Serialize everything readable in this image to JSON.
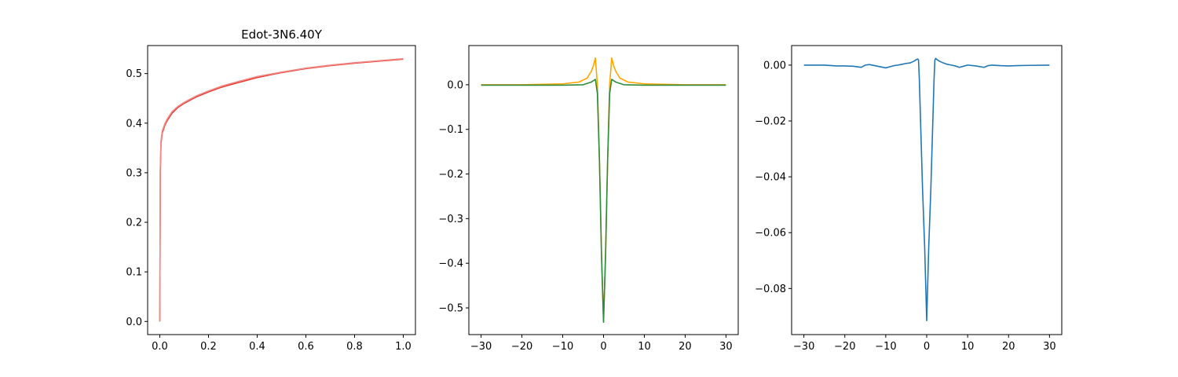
{
  "chart_data": [
    {
      "type": "line",
      "title": "Edot-3N6.40Y",
      "xlabel": "",
      "ylabel": "",
      "xlim": [
        -0.05,
        1.05
      ],
      "ylim": [
        -0.0265,
        0.5565
      ],
      "xticks": [
        0.0,
        0.2,
        0.4,
        0.6,
        0.8,
        1.0
      ],
      "xtick_labels": [
        "0.0",
        "0.2",
        "0.4",
        "0.6",
        "0.8",
        "1.0"
      ],
      "yticks": [
        0.0,
        0.1,
        0.2,
        0.3,
        0.4,
        0.5
      ],
      "ytick_labels": [
        "0.0",
        "0.1",
        "0.2",
        "0.3",
        "0.4",
        "0.5"
      ],
      "grid": false,
      "series": [
        {
          "color": "#e8372c",
          "x": [
            0.0,
            0.002,
            0.005,
            0.01,
            0.02,
            0.03,
            0.05,
            0.075,
            0.1,
            0.15,
            0.2,
            0.25,
            0.3,
            0.4,
            0.5,
            0.6,
            0.7,
            0.8,
            0.9,
            1.0
          ],
          "y": [
            0.0,
            0.3,
            0.36,
            0.38,
            0.395,
            0.405,
            0.42,
            0.432,
            0.44,
            0.453,
            0.463,
            0.472,
            0.479,
            0.492,
            0.502,
            0.51,
            0.516,
            0.521,
            0.525,
            0.529
          ]
        },
        {
          "color": "#f08a86",
          "x": [
            0.0,
            0.002,
            0.005,
            0.01,
            0.02,
            0.03,
            0.05,
            0.075,
            0.1,
            0.15,
            0.2,
            0.25,
            0.3,
            0.4,
            0.5,
            0.6,
            0.7,
            0.8,
            0.9,
            1.0
          ],
          "y": [
            0.0,
            0.31,
            0.365,
            0.384,
            0.398,
            0.408,
            0.423,
            0.434,
            0.442,
            0.455,
            0.465,
            0.474,
            0.481,
            0.494,
            0.503,
            0.511,
            0.517,
            0.522,
            0.526,
            0.53
          ]
        }
      ]
    },
    {
      "type": "line",
      "title": "",
      "xlabel": "",
      "ylabel": "",
      "xlim": [
        -33,
        33
      ],
      "ylim": [
        -0.5598,
        0.0878
      ],
      "xticks": [
        -30,
        -20,
        -10,
        0,
        10,
        20,
        30
      ],
      "xtick_labels": [
        "−30",
        "−20",
        "−10",
        "0",
        "10",
        "20",
        "30"
      ],
      "yticks": [
        0.0,
        -0.1,
        -0.2,
        -0.3,
        -0.4,
        -0.5
      ],
      "ytick_labels": [
        "0.0",
        "−0.1",
        "−0.2",
        "−0.3",
        "−0.4",
        "−0.5"
      ],
      "grid": false,
      "series": [
        {
          "color": "#ffa500",
          "x": [
            -30,
            -20,
            -10,
            -6,
            -4,
            -3,
            -2.5,
            -2,
            -1.5,
            -1,
            -0.5,
            0,
            0.5,
            1,
            1.5,
            2,
            2.5,
            3,
            4,
            6,
            10,
            20,
            30
          ],
          "y": [
            0.0,
            0.0,
            0.002,
            0.006,
            0.015,
            0.03,
            0.042,
            0.06,
            0.0,
            -0.17,
            -0.38,
            -0.53,
            -0.38,
            -0.17,
            0.0,
            0.06,
            0.042,
            0.03,
            0.015,
            0.006,
            0.002,
            0.0,
            0.0
          ]
        },
        {
          "color": "#2e8b3d",
          "x": [
            -30,
            -20,
            -10,
            -5,
            -3,
            -2,
            -1.5,
            -1,
            -0.5,
            0,
            0.5,
            1,
            1.5,
            2,
            3,
            5,
            10,
            20,
            30
          ],
          "y": [
            -0.001,
            -0.001,
            -0.001,
            0.0,
            0.006,
            0.012,
            -0.02,
            -0.17,
            -0.38,
            -0.532,
            -0.38,
            -0.17,
            -0.02,
            0.012,
            0.006,
            0.0,
            -0.001,
            -0.001,
            -0.001
          ]
        }
      ]
    },
    {
      "type": "line",
      "title": "",
      "xlabel": "",
      "ylabel": "",
      "xlim": [
        -33,
        33
      ],
      "ylim": [
        -0.0965,
        0.007
      ],
      "xticks": [
        -30,
        -20,
        -10,
        0,
        10,
        20,
        30
      ],
      "xtick_labels": [
        "−30",
        "−20",
        "−10",
        "0",
        "10",
        "20",
        "30"
      ],
      "yticks": [
        0.0,
        -0.02,
        -0.04,
        -0.06,
        -0.08
      ],
      "ytick_labels": [
        "0.00",
        "−0.02",
        "−0.04",
        "−0.06",
        "−0.08"
      ],
      "grid": false,
      "series": [
        {
          "color": "#1f77b4",
          "x": [
            -30,
            -25,
            -22,
            -20,
            -18,
            -16,
            -15,
            -14,
            -12,
            -10,
            -9,
            -8,
            -7,
            -6,
            -5,
            -4,
            -3,
            -2.5,
            -2.2,
            -2,
            -1.8,
            -1.5,
            -1,
            -0.5,
            0,
            0.5,
            1,
            1.5,
            1.8,
            2,
            2.2,
            2.5,
            3,
            4,
            5,
            6,
            7,
            8,
            9,
            10,
            12,
            14,
            15,
            16,
            18,
            20,
            22,
            25,
            30
          ],
          "y": [
            0.0,
            0.0,
            -0.0003,
            -0.0003,
            -0.0004,
            -0.0008,
            0.0,
            0.0002,
            -0.0004,
            -0.001,
            -0.0006,
            -0.0002,
            0.0,
            0.0003,
            0.0006,
            0.0008,
            0.0015,
            0.002,
            0.0022,
            0.0018,
            -0.005,
            -0.02,
            -0.045,
            -0.065,
            -0.0915,
            -0.065,
            -0.045,
            -0.02,
            -0.005,
            0.0018,
            0.0024,
            0.002,
            0.0015,
            0.0008,
            0.0003,
            0.0,
            -0.0003,
            -0.0008,
            -0.0004,
            0.0,
            -0.0003,
            -0.0008,
            -0.0002,
            0.0,
            -0.0002,
            -0.0003,
            -0.0002,
            -0.0001,
            0.0
          ]
        }
      ]
    }
  ]
}
